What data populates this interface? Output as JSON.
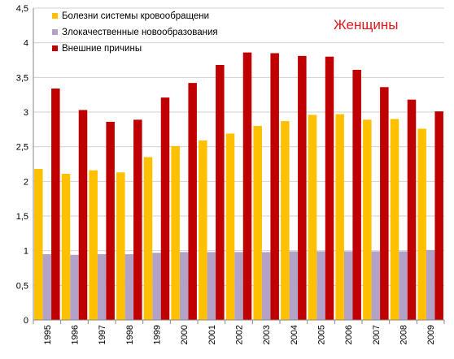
{
  "chart_data": {
    "type": "bar",
    "title": "Женщины",
    "title_color": "#e2161c",
    "categories": [
      "1995",
      "1996",
      "1997",
      "1998",
      "1999",
      "2000",
      "2001",
      "2002",
      "2003",
      "2004",
      "2005",
      "2006",
      "2007",
      "2008",
      "2009"
    ],
    "series": [
      {
        "name": "Болезни системы кровообращени",
        "color": "#ffc000",
        "values": [
          2.18,
          2.11,
          2.16,
          2.13,
          2.35,
          2.51,
          2.59,
          2.69,
          2.8,
          2.87,
          2.96,
          2.97,
          2.89,
          2.9,
          2.76
        ]
      },
      {
        "name": "Злокачественные новообразования",
        "color": "#b3a2c7",
        "values": [
          0.95,
          0.94,
          0.95,
          0.95,
          0.97,
          0.98,
          0.98,
          0.98,
          0.98,
          0.99,
          0.99,
          0.99,
          0.99,
          0.99,
          1.01
        ]
      },
      {
        "name": "Внешние причины",
        "color": "#c00000",
        "values": [
          3.34,
          3.03,
          2.86,
          2.89,
          3.21,
          3.42,
          3.68,
          3.86,
          3.85,
          3.81,
          3.8,
          3.61,
          3.36,
          3.18,
          3.01
        ]
      }
    ],
    "yticks": [
      "0",
      "0,5",
      "1",
      "1,5",
      "2",
      "2,5",
      "3",
      "3,5",
      "4",
      "4,5"
    ],
    "ylim": [
      0,
      4.5
    ],
    "grid": true,
    "legend_position": "top-left",
    "xlabel": "",
    "ylabel": ""
  }
}
